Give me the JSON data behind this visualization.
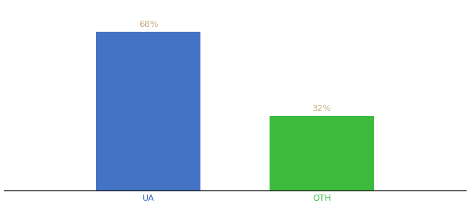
{
  "categories": [
    "UA",
    "OTH"
  ],
  "values": [
    68,
    32
  ],
  "bar_colors": [
    "#4472c4",
    "#3dbb3d"
  ],
  "label_color": "#c8a882",
  "label_fontsize": 9,
  "xlabel_fontsize": 9,
  "xlabel_colors": [
    "#4472c4",
    "#3dbb3d"
  ],
  "ylim": [
    0,
    80
  ],
  "bar_width": 0.18,
  "x_positions": [
    0.33,
    0.63
  ],
  "xlim": [
    0.08,
    0.88
  ],
  "background_color": "#ffffff",
  "spine_color": "#1a1a1a",
  "label_format": [
    "68%",
    "32%"
  ]
}
